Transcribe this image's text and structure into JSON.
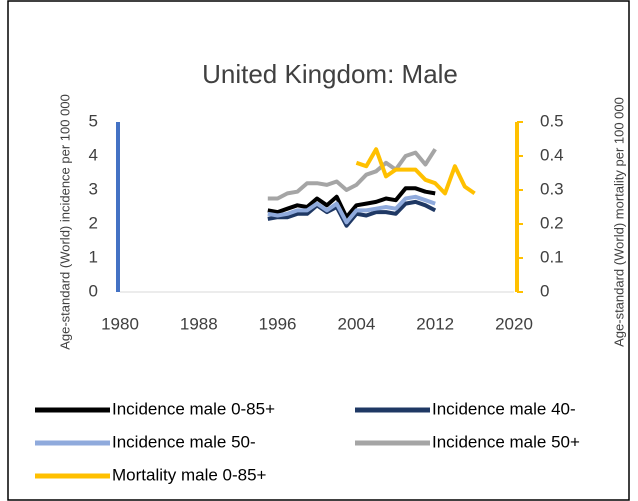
{
  "chart_data": {
    "type": "line",
    "title": "United Kingdom: Male",
    "ylabel": "Age-standard (World) incidence per 100 000",
    "y2label": "Age-standard (World) mortality per 100 000",
    "x": [
      1995,
      1996,
      1997,
      1998,
      1999,
      2000,
      2001,
      2002,
      2003,
      2004,
      2005,
      2006,
      2007,
      2008,
      2009,
      2010,
      2011,
      2012,
      2013,
      2014,
      2015,
      2016
    ],
    "series": [
      {
        "name": "Incidence male 0-85+",
        "color": "#000000",
        "values": [
          2.4,
          2.35,
          2.45,
          2.55,
          2.5,
          2.75,
          2.55,
          2.8,
          2.2,
          2.55,
          2.6,
          2.65,
          2.75,
          2.7,
          3.05,
          3.05,
          2.95,
          2.9,
          null,
          null,
          null,
          null
        ]
      },
      {
        "name": "Incidence male 40-",
        "color": "#1f3864",
        "values": [
          2.15,
          2.2,
          2.2,
          2.3,
          2.3,
          2.55,
          2.35,
          2.5,
          1.95,
          2.3,
          2.25,
          2.35,
          2.35,
          2.3,
          2.6,
          2.65,
          2.55,
          2.4,
          null,
          null,
          null,
          null
        ]
      },
      {
        "name": "Incidence male 50-",
        "color": "#8faadc",
        "values": [
          2.3,
          2.25,
          2.3,
          2.4,
          2.4,
          2.6,
          2.4,
          2.6,
          2.05,
          2.4,
          2.4,
          2.45,
          2.5,
          2.45,
          2.75,
          2.8,
          2.7,
          2.6,
          null,
          null,
          null,
          null
        ]
      },
      {
        "name": "Incidence male 50+",
        "color": "#a5a5a5",
        "values": [
          2.75,
          2.75,
          2.9,
          2.95,
          3.2,
          3.2,
          3.15,
          3.25,
          3.0,
          3.15,
          3.45,
          3.55,
          3.8,
          3.6,
          4.0,
          4.1,
          3.75,
          4.2,
          null,
          null,
          null,
          null
        ]
      },
      {
        "name": "Mortality male 0-85+",
        "color": "#ffc000",
        "axis": "y2",
        "values": [
          null,
          null,
          null,
          null,
          null,
          null,
          null,
          null,
          null,
          0.38,
          0.37,
          0.42,
          0.34,
          0.36,
          0.36,
          0.36,
          0.33,
          0.32,
          0.29,
          0.37,
          0.31,
          0.29
        ]
      }
    ],
    "xlim": [
      1980,
      2020
    ],
    "xticks": [
      1980,
      1988,
      1996,
      2004,
      2012,
      2020
    ],
    "ylim": [
      0,
      5
    ],
    "yticks": [
      0,
      1,
      2,
      3,
      4,
      5
    ],
    "y2lim": [
      0,
      0.5
    ],
    "y2ticks": [
      0,
      0.1,
      0.2,
      0.3,
      0.4,
      0.5
    ],
    "y_axis_color": "#4472c4",
    "y2_axis_color": "#ffc000",
    "grid": false,
    "legend": "bottom"
  }
}
